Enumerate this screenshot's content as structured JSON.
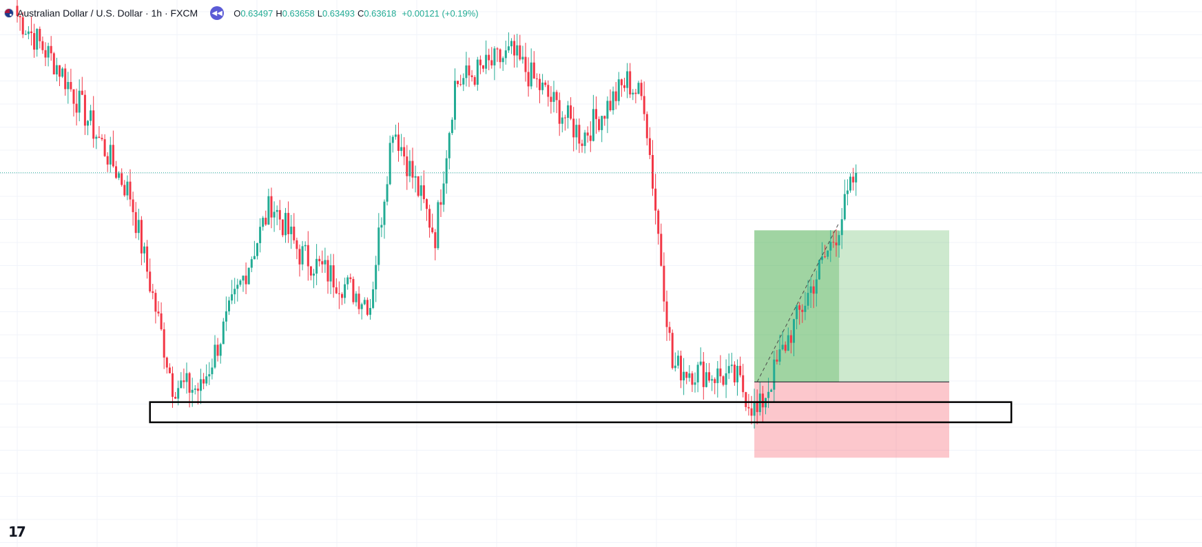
{
  "header": {
    "title": "Australian Dollar / U.S. Dollar · 1h · FXCM",
    "ohlc": {
      "o_key": "O",
      "o_val": "0.63497",
      "h_key": "H",
      "h_val": "0.63658",
      "l_key": "L",
      "l_val": "0.63493",
      "c_key": "C",
      "c_val": "0.63618",
      "change": "+0.00121 (+0.19%)"
    },
    "replay_icon": "rewind-icon",
    "flag_icon": "aud-usd-flag-icon"
  },
  "logo": {
    "text": "17",
    "icon": "tradingview-logo-icon"
  },
  "colors": {
    "up": "#22ab94",
    "down": "#f23645",
    "grid": "#f0f3fa",
    "target_zone": "#4caf50",
    "stop_zone": "#f7525f",
    "box_border": "#000000",
    "price_line": "#22ab94"
  },
  "chart_data": {
    "type": "candlestick",
    "symbol": "AUDUSD",
    "timeframe": "1h",
    "broker": "FXCM",
    "ylim": [
      0.6248,
      0.6428
    ],
    "last_price": 0.63618,
    "grid": true,
    "key_points": [
      {
        "bar": 0,
        "price": 0.6424
      },
      {
        "bar": 15,
        "price": 0.6403
      },
      {
        "bar": 40,
        "price": 0.6353
      },
      {
        "bar": 55,
        "price": 0.6278
      },
      {
        "bar": 65,
        "price": 0.6276
      },
      {
        "bar": 90,
        "price": 0.635
      },
      {
        "bar": 100,
        "price": 0.633
      },
      {
        "bar": 125,
        "price": 0.631
      },
      {
        "bar": 133,
        "price": 0.6381
      },
      {
        "bar": 148,
        "price": 0.6337
      },
      {
        "bar": 155,
        "price": 0.6397
      },
      {
        "bar": 175,
        "price": 0.6409
      },
      {
        "bar": 200,
        "price": 0.6376
      },
      {
        "bar": 216,
        "price": 0.6398
      },
      {
        "bar": 222,
        "price": 0.639
      },
      {
        "bar": 232,
        "price": 0.6285
      },
      {
        "bar": 255,
        "price": 0.628
      },
      {
        "bar": 262,
        "price": 0.6266
      },
      {
        "bar": 272,
        "price": 0.6294
      },
      {
        "bar": 290,
        "price": 0.6338
      },
      {
        "bar": 297,
        "price": 0.6362
      }
    ],
    "annotations": {
      "support_zone": {
        "bar_start": 47,
        "bar_end": 352,
        "price_top": 0.6271,
        "price_bottom": 0.6263
      },
      "long_position": {
        "bar_start": 261,
        "bar_end": 330,
        "entry": 0.6279,
        "target": 0.6339,
        "stop": 0.6249,
        "filled_until_bar": 291
      },
      "dashed_path": [
        [
          262,
          0.6279
        ],
        [
          291,
          0.6342
        ]
      ]
    }
  }
}
